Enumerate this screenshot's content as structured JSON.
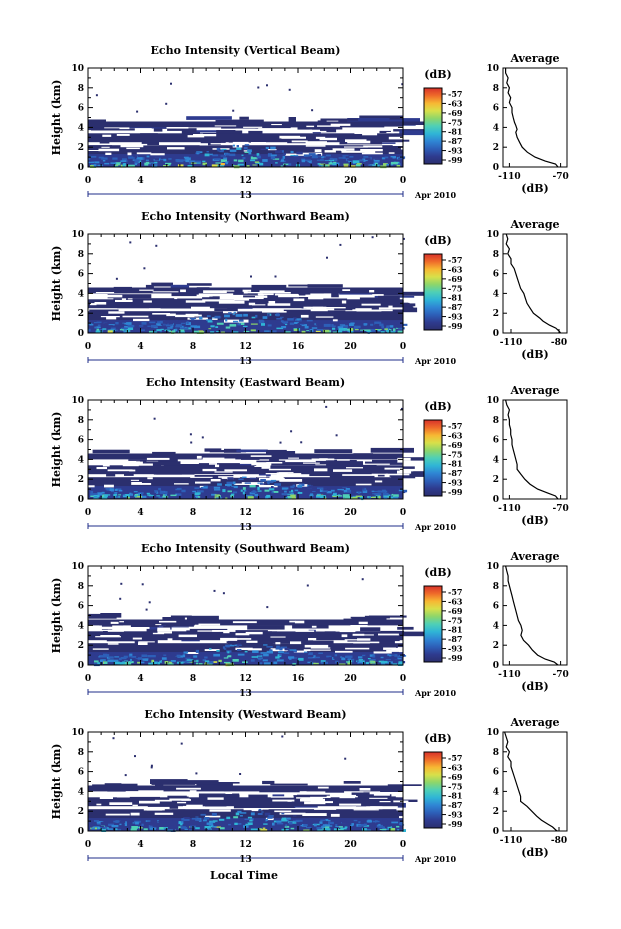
{
  "colors": {
    "background": "#ffffff",
    "colormap": [
      "#2b2f6e",
      "#2e3b8f",
      "#2d5fb8",
      "#2f86d4",
      "#2fb5d6",
      "#4fd0b6",
      "#8ed66a",
      "#d8e04a",
      "#f7b733",
      "#ef6b2a",
      "#d8322a"
    ]
  },
  "shared": {
    "colorbar_unit": "(dB)",
    "colorbar_ticks": [
      "-57",
      "-63",
      "-69",
      "-75",
      "-81",
      "-87",
      "-93",
      "-99"
    ],
    "x_ticks": [
      "0",
      "4",
      "8",
      "12",
      "16",
      "20",
      "0"
    ],
    "date_day": "13",
    "date_tail": "Apr 2010",
    "ylabel": "Height (km)",
    "y_ticks": [
      "0",
      "2",
      "4",
      "6",
      "8",
      "10"
    ],
    "avg_title": "Average",
    "avg_xlabel": "(dB)",
    "xlabel": "Local Time"
  },
  "chart_data": [
    {
      "type": "heatmap",
      "title": "Echo Intensity (Vertical Beam)",
      "xlabel": "",
      "ylabel": "Height (km)",
      "ylim": [
        0,
        10
      ],
      "xlim": [
        0,
        24
      ],
      "clim": [
        -99,
        -57
      ],
      "avg_profile": {
        "title": "Average",
        "xlabel": "(dB)",
        "x_ticks": [
          "-110",
          "-70"
        ],
        "xlim": [
          -115,
          -65
        ],
        "points": [
          [
            -113,
            10
          ],
          [
            -113,
            9.5
          ],
          [
            -111,
            9
          ],
          [
            -112,
            8.5
          ],
          [
            -110,
            8
          ],
          [
            -111,
            7.5
          ],
          [
            -109,
            7
          ],
          [
            -110,
            6.5
          ],
          [
            -108,
            6
          ],
          [
            -108,
            5.5
          ],
          [
            -107,
            5
          ],
          [
            -106,
            4.5
          ],
          [
            -105,
            4.2
          ],
          [
            -104,
            3.8
          ],
          [
            -105,
            3.5
          ],
          [
            -104,
            3
          ],
          [
            -102,
            2.5
          ],
          [
            -100,
            2
          ],
          [
            -96,
            1.5
          ],
          [
            -90,
            1
          ],
          [
            -82,
            0.6
          ],
          [
            -74,
            0.3
          ],
          [
            -72,
            0
          ]
        ]
      }
    },
    {
      "type": "heatmap",
      "title": "Echo Intensity (Northward Beam)",
      "xlabel": "",
      "ylabel": "Height (km)",
      "ylim": [
        0,
        10
      ],
      "xlim": [
        0,
        24
      ],
      "clim": [
        -99,
        -57
      ],
      "avg_profile": {
        "title": "Average",
        "xlabel": "(dB)",
        "x_ticks": [
          "-110",
          "-80"
        ],
        "xlim": [
          -115,
          -75
        ],
        "points": [
          [
            -113,
            10
          ],
          [
            -112,
            9.5
          ],
          [
            -113,
            9
          ],
          [
            -111,
            8.5
          ],
          [
            -112,
            8
          ],
          [
            -110,
            7.5
          ],
          [
            -110,
            7
          ],
          [
            -108,
            6.5
          ],
          [
            -107,
            6
          ],
          [
            -106,
            5.5
          ],
          [
            -105,
            5
          ],
          [
            -104,
            4.5
          ],
          [
            -102,
            4
          ],
          [
            -101,
            3.5
          ],
          [
            -100,
            3
          ],
          [
            -98,
            2.5
          ],
          [
            -96,
            2
          ],
          [
            -92,
            1.5
          ],
          [
            -90,
            1.2
          ],
          [
            -86,
            0.8
          ],
          [
            -82,
            0.5
          ],
          [
            -80,
            0.2
          ],
          [
            -79,
            0
          ]
        ]
      }
    },
    {
      "type": "heatmap",
      "title": "Echo Intensity (Eastward Beam)",
      "xlabel": "",
      "ylabel": "Height (km)",
      "ylim": [
        0,
        10
      ],
      "xlim": [
        0,
        24
      ],
      "clim": [
        -99,
        -57
      ],
      "avg_profile": {
        "title": "Average",
        "xlabel": "(dB)",
        "x_ticks": [
          "-110",
          "-70"
        ],
        "xlim": [
          -115,
          -65
        ],
        "points": [
          [
            -113,
            10
          ],
          [
            -112,
            9.5
          ],
          [
            -110,
            9
          ],
          [
            -111,
            8.5
          ],
          [
            -110,
            8
          ],
          [
            -110,
            7.5
          ],
          [
            -109,
            7
          ],
          [
            -109,
            6.5
          ],
          [
            -108,
            6
          ],
          [
            -108,
            5.5
          ],
          [
            -107,
            5
          ],
          [
            -106,
            4.5
          ],
          [
            -105,
            4
          ],
          [
            -104,
            3.5
          ],
          [
            -104,
            3
          ],
          [
            -101,
            2.5
          ],
          [
            -98,
            2
          ],
          [
            -94,
            1.5
          ],
          [
            -88,
            1
          ],
          [
            -80,
            0.6
          ],
          [
            -74,
            0.3
          ],
          [
            -72,
            0
          ]
        ]
      }
    },
    {
      "type": "heatmap",
      "title": "Echo Intensity (Southward Beam)",
      "xlabel": "",
      "ylabel": "Height (km)",
      "ylim": [
        0,
        10
      ],
      "xlim": [
        0,
        24
      ],
      "clim": [
        -99,
        -57
      ],
      "avg_profile": {
        "title": "Average",
        "xlabel": "(dB)",
        "x_ticks": [
          "-110",
          "-70"
        ],
        "xlim": [
          -115,
          -65
        ],
        "points": [
          [
            -113,
            10
          ],
          [
            -112,
            9.5
          ],
          [
            -111,
            9
          ],
          [
            -111,
            8.5
          ],
          [
            -110,
            8
          ],
          [
            -109,
            7.5
          ],
          [
            -108,
            7
          ],
          [
            -107,
            6.5
          ],
          [
            -106,
            6
          ],
          [
            -105,
            5.5
          ],
          [
            -104,
            5
          ],
          [
            -103,
            4.5
          ],
          [
            -101,
            4
          ],
          [
            -100,
            3.5
          ],
          [
            -101,
            3
          ],
          [
            -99,
            2.5
          ],
          [
            -95,
            2
          ],
          [
            -92,
            1.5
          ],
          [
            -88,
            1
          ],
          [
            -82,
            0.6
          ],
          [
            -75,
            0.3
          ],
          [
            -72,
            0
          ]
        ]
      }
    },
    {
      "type": "heatmap",
      "title": "Echo Intensity (Westward Beam)",
      "xlabel": "Local Time",
      "ylabel": "Height (km)",
      "ylim": [
        0,
        10
      ],
      "xlim": [
        0,
        24
      ],
      "clim": [
        -99,
        -57
      ],
      "avg_profile": {
        "title": "Average",
        "xlabel": "(dB)",
        "x_ticks": [
          "-110",
          "-80"
        ],
        "xlim": [
          -115,
          -75
        ],
        "points": [
          [
            -114,
            10
          ],
          [
            -113,
            9.5
          ],
          [
            -112,
            9
          ],
          [
            -113,
            8.5
          ],
          [
            -111,
            8
          ],
          [
            -112,
            7.5
          ],
          [
            -110,
            7
          ],
          [
            -110,
            6.5
          ],
          [
            -109,
            6
          ],
          [
            -108,
            5.5
          ],
          [
            -107,
            5
          ],
          [
            -106,
            4.5
          ],
          [
            -105,
            4
          ],
          [
            -104,
            3.5
          ],
          [
            -104,
            3
          ],
          [
            -100,
            2.5
          ],
          [
            -97,
            2
          ],
          [
            -94,
            1.5
          ],
          [
            -91,
            1.1
          ],
          [
            -87,
            0.7
          ],
          [
            -84,
            0.4
          ],
          [
            -82,
            0.1
          ],
          [
            -81,
            0
          ]
        ]
      }
    }
  ]
}
